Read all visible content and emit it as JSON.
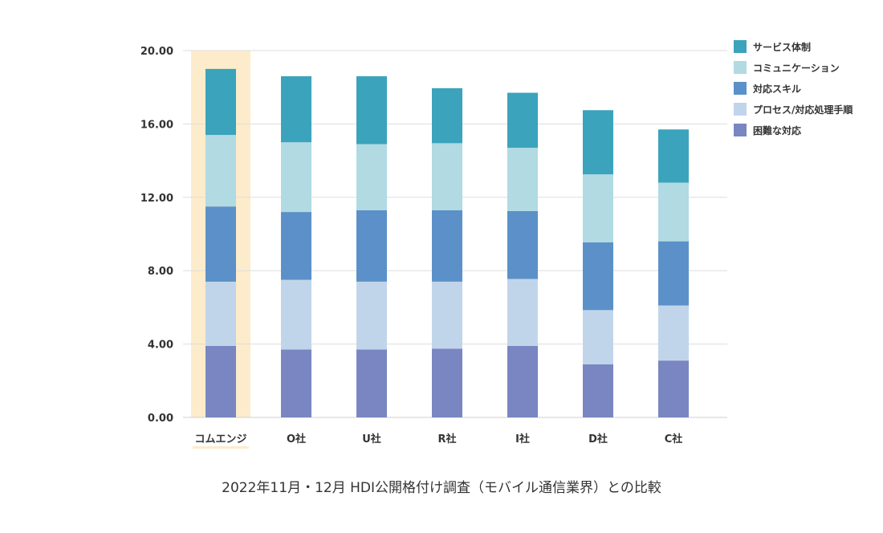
{
  "caption": "2022年11月・12月 HDI公開格付け調査（モバイル通信業界）との比較",
  "chart_data": {
    "type": "bar",
    "stacked": true,
    "categories": [
      "コムエンジ",
      "O社",
      "U社",
      "R社",
      "I社",
      "D社",
      "C社"
    ],
    "highlight_category": "コムエンジ",
    "highlight_color": "#fdeccb",
    "ylim": [
      0,
      20
    ],
    "yticks": [
      "0.00",
      "4.00",
      "8.00",
      "12.00",
      "16.00",
      "20.00"
    ],
    "grid": true,
    "legend_position": "right",
    "series": [
      {
        "name": "困難な対応",
        "color": "#7986c2",
        "values": [
          3.9,
          3.7,
          3.7,
          3.75,
          3.9,
          2.9,
          3.1
        ]
      },
      {
        "name": "プロセス/対応処理手順",
        "color": "#c1d5ea",
        "values": [
          3.5,
          3.8,
          3.7,
          3.65,
          3.65,
          2.95,
          3.0
        ]
      },
      {
        "name": "対応スキル",
        "color": "#5b91c8",
        "values": [
          4.1,
          3.7,
          3.9,
          3.9,
          3.7,
          3.7,
          3.5
        ]
      },
      {
        "name": "コミュニケーション",
        "color": "#b1dae3",
        "values": [
          3.9,
          3.8,
          3.6,
          3.65,
          3.45,
          3.7,
          3.2
        ]
      },
      {
        "name": "サービス体制",
        "color": "#3ba3bc",
        "values": [
          3.6,
          3.6,
          3.7,
          3.0,
          3.0,
          3.5,
          2.9
        ]
      }
    ]
  }
}
